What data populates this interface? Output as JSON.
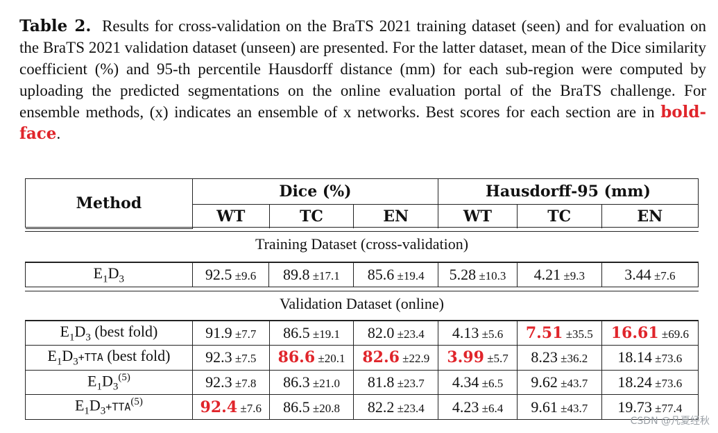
{
  "caption": {
    "label": "Table 2.",
    "text": "Results for cross-validation on the BraTS 2021 training dataset (seen) and for evaluation on the BraTS 2021 validation dataset (unseen) are presented. For the latter dataset, mean of the Dice similarity coefficient (%) and 95-th percentile Hausdorff distance (mm) for each sub-region were computed by uploading the predicted segmentations on the online evaluation portal of the BraTS challenge. For ensemble methods, (x) indicates an ensemble of x networks. Best scores for each section are in",
    "bold_face": "bold-face",
    "end": "."
  },
  "header": {
    "method": "Method",
    "dice": "Dice (%)",
    "hausdorff": "Hausdorff-95 (mm)",
    "cols": [
      "WT",
      "TC",
      "EN",
      "WT",
      "TC",
      "EN"
    ]
  },
  "sections": {
    "training": "Training Dataset (cross-validation)",
    "validation": "Validation Dataset (online)"
  },
  "training_rows": [
    {
      "method": "E1D3",
      "cells": [
        [
          "92.5",
          "±9.6"
        ],
        [
          "89.8",
          "±17.1"
        ],
        [
          "85.6",
          "±19.4"
        ],
        [
          "5.28",
          "±10.3"
        ],
        [
          "4.21",
          "±9.3"
        ],
        [
          "3.44",
          "±7.6"
        ]
      ]
    }
  ],
  "validation_rows": [
    {
      "method": "E1D3 (best fold)",
      "cells": [
        [
          "91.9",
          "±7.7"
        ],
        [
          "86.5",
          "±19.1"
        ],
        [
          "82.0",
          "±23.4"
        ],
        [
          "4.13",
          "±5.6"
        ],
        [
          "7.51",
          "±35.5"
        ],
        [
          "16.61",
          "±69.6"
        ]
      ]
    },
    {
      "method": "E1D3+TTA (best fold)",
      "cells": [
        [
          "92.3",
          "±7.5"
        ],
        [
          "86.6",
          "±20.1"
        ],
        [
          "82.6",
          "±22.9"
        ],
        [
          "3.99",
          "±5.7"
        ],
        [
          "8.23",
          "±36.2"
        ],
        [
          "18.14",
          "±73.6"
        ]
      ]
    },
    {
      "method": "E1D3(5)",
      "cells": [
        [
          "92.3",
          "±7.8"
        ],
        [
          "86.3",
          "±21.0"
        ],
        [
          "81.8",
          "±23.7"
        ],
        [
          "4.34",
          "±6.5"
        ],
        [
          "9.62",
          "±43.7"
        ],
        [
          "18.24",
          "±73.6"
        ]
      ]
    },
    {
      "method": "E1D3+TTA(5)",
      "cells": [
        [
          "92.4",
          "±7.6"
        ],
        [
          "86.5",
          "±20.8"
        ],
        [
          "82.2",
          "±23.4"
        ],
        [
          "4.23",
          "±6.4"
        ],
        [
          "9.61",
          "±43.7"
        ],
        [
          "19.73",
          "±77.4"
        ]
      ]
    }
  ],
  "best_color": "#e0252b",
  "watermark": "CSDN @凡夏经秋"
}
